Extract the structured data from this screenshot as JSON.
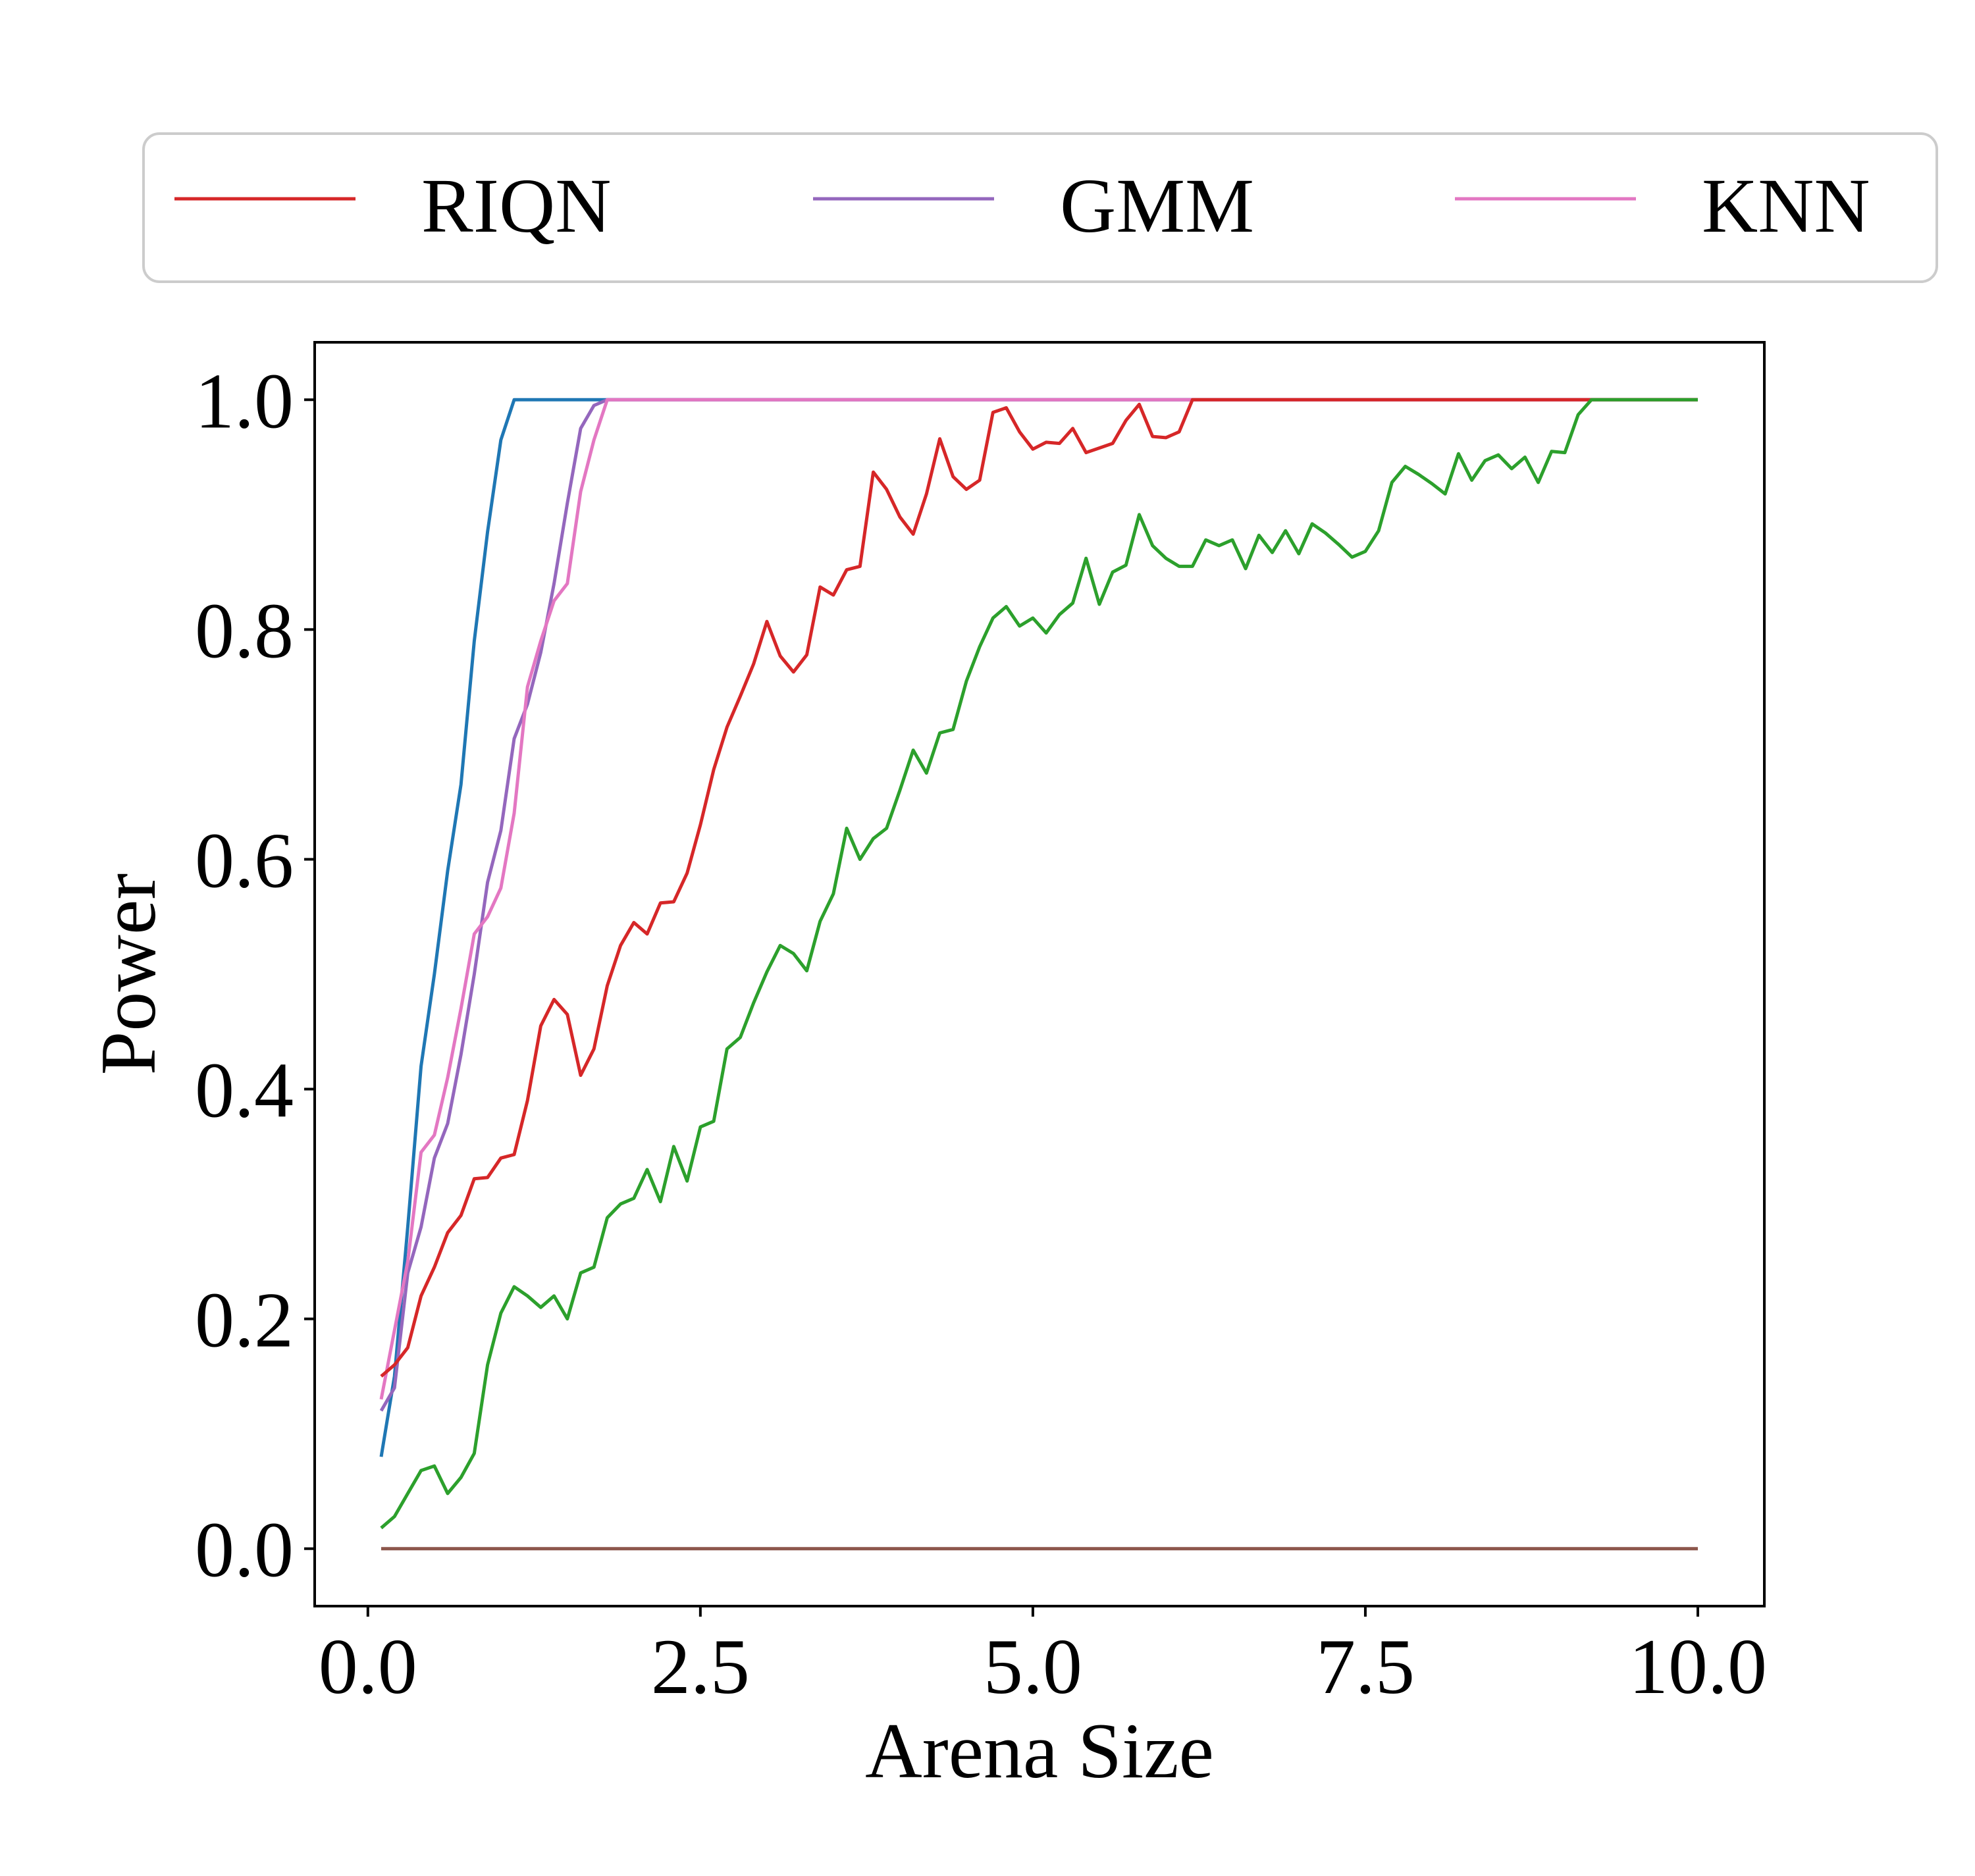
{
  "chart_data": {
    "type": "line",
    "xlabel": "Arena Size",
    "ylabel": "Power",
    "xlim": [
      -0.4,
      10.5
    ],
    "ylim": [
      -0.05,
      1.05
    ],
    "xticks": [
      "0.0",
      "2.5",
      "5.0",
      "7.5",
      "10.0"
    ],
    "xtick_values": [
      0,
      2.5,
      5,
      7.5,
      10
    ],
    "yticks": [
      "0.0",
      "0.2",
      "0.4",
      "0.6",
      "0.8",
      "1.0"
    ],
    "ytick_values": [
      0,
      0.2,
      0.4,
      0.6,
      0.8,
      1.0
    ],
    "grid": false,
    "legend": {
      "placement": "top, above plot, 3 columns",
      "entries": [
        {
          "label": "RIQN",
          "color": "#d62728"
        },
        {
          "label": "GMM",
          "color": "#9467bd"
        },
        {
          "label": "KNN",
          "color": "#e377c2"
        }
      ]
    },
    "series": [
      {
        "color": "#1f77b4",
        "x": [
          0.1,
          0.2,
          0.3,
          0.4,
          0.5,
          0.6,
          0.7,
          0.8,
          0.9,
          1.0,
          1.1,
          1.2,
          1.8,
          10.0
        ],
        "y": [
          0.08,
          0.15,
          0.28,
          0.42,
          0.5,
          0.59,
          0.665,
          0.79,
          0.885,
          0.965,
          1.0,
          1.0,
          1.0,
          1.0
        ]
      },
      {
        "name": "GMM",
        "color": "#9467bd",
        "x": [
          0.1,
          0.2,
          0.3,
          0.4,
          0.5,
          0.6,
          0.7,
          0.8,
          0.9,
          1.0,
          1.1,
          1.2,
          1.3,
          1.4,
          1.5,
          1.6,
          1.7,
          1.8,
          10.0
        ],
        "y": [
          0.12,
          0.14,
          0.24,
          0.28,
          0.34,
          0.37,
          0.43,
          0.5,
          0.58,
          0.625,
          0.705,
          0.735,
          0.78,
          0.84,
          0.91,
          0.975,
          0.995,
          1.0,
          1.0
        ]
      },
      {
        "name": "KNN",
        "color": "#e377c2",
        "x": [
          0.1,
          0.2,
          0.3,
          0.4,
          0.5,
          0.6,
          0.7,
          0.8,
          0.9,
          1.0,
          1.1,
          1.2,
          1.3,
          1.4,
          1.5,
          1.6,
          1.7,
          1.8,
          10.0
        ],
        "y": [
          0.13,
          0.19,
          0.25,
          0.345,
          0.36,
          0.41,
          0.47,
          0.535,
          0.55,
          0.575,
          0.64,
          0.75,
          0.79,
          0.825,
          0.84,
          0.92,
          0.965,
          1.0,
          1.0
        ]
      },
      {
        "name": "RIQN",
        "color": "#d62728",
        "x": [
          0.1,
          0.2,
          0.3,
          0.4,
          0.5,
          0.6,
          0.7,
          0.8,
          0.9,
          1.0,
          1.1,
          1.2,
          1.3,
          1.4,
          1.5,
          1.6,
          1.7,
          1.8,
          1.9,
          2.0,
          2.1,
          2.2,
          2.3,
          2.4,
          2.5,
          2.6,
          2.7,
          2.8,
          2.9,
          3.0,
          3.1,
          3.2,
          3.3,
          3.4,
          3.5,
          3.6,
          3.7,
          3.8,
          3.9,
          4.0,
          4.1,
          4.2,
          4.3,
          4.4,
          4.5,
          4.6,
          4.7,
          4.8,
          4.9,
          5.0,
          5.1,
          5.2,
          5.3,
          5.4,
          5.5,
          5.6,
          5.7,
          5.8,
          5.9,
          6.0,
          6.1,
          6.2,
          10.0
        ],
        "y": [
          0.15,
          0.16,
          0.175,
          0.22,
          0.245,
          0.275,
          0.29,
          0.322,
          0.323,
          0.34,
          0.343,
          0.39,
          0.455,
          0.478,
          0.465,
          0.412,
          0.435,
          0.49,
          0.525,
          0.545,
          0.535,
          0.562,
          0.563,
          0.588,
          0.63,
          0.678,
          0.715,
          0.742,
          0.77,
          0.807,
          0.777,
          0.763,
          0.778,
          0.837,
          0.83,
          0.852,
          0.855,
          0.937,
          0.922,
          0.898,
          0.883,
          0.918,
          0.966,
          0.933,
          0.922,
          0.93,
          0.989,
          0.993,
          0.972,
          0.957,
          0.963,
          0.962,
          0.975,
          0.954,
          0.958,
          0.962,
          0.982,
          0.996,
          0.968,
          0.967,
          0.972,
          1.0,
          1.0
        ]
      },
      {
        "color": "#2ca02c",
        "x": [
          0.1,
          0.2,
          0.3,
          0.4,
          0.5,
          0.6,
          0.7,
          0.8,
          0.9,
          1.0,
          1.1,
          1.2,
          1.3,
          1.4,
          1.5,
          1.6,
          1.7,
          1.8,
          1.9,
          2.0,
          2.1,
          2.2,
          2.3,
          2.4,
          2.5,
          2.6,
          2.7,
          2.8,
          2.9,
          3.0,
          3.1,
          3.2,
          3.3,
          3.4,
          3.5,
          3.6,
          3.7,
          3.8,
          3.9,
          4.0,
          4.1,
          4.2,
          4.3,
          4.4,
          4.5,
          4.6,
          4.7,
          4.8,
          4.9,
          5.0,
          5.1,
          5.2,
          5.3,
          5.4,
          5.5,
          5.6,
          5.7,
          5.8,
          5.9,
          6.0,
          6.1,
          6.2,
          6.3,
          6.4,
          6.5,
          6.6,
          6.7,
          6.8,
          6.9,
          7.0,
          7.1,
          7.2,
          7.3,
          7.4,
          7.5,
          7.6,
          7.7,
          7.8,
          7.9,
          8.0,
          8.1,
          8.2,
          8.3,
          8.4,
          8.5,
          8.6,
          8.7,
          8.8,
          8.9,
          9.0,
          9.1,
          9.2,
          10.0
        ],
        "y": [
          0.018,
          0.028,
          0.048,
          0.068,
          0.072,
          0.048,
          0.062,
          0.083,
          0.16,
          0.205,
          0.228,
          0.22,
          0.21,
          0.22,
          0.2,
          0.24,
          0.245,
          0.288,
          0.3,
          0.305,
          0.33,
          0.302,
          0.35,
          0.32,
          0.367,
          0.372,
          0.435,
          0.445,
          0.475,
          0.502,
          0.525,
          0.518,
          0.503,
          0.546,
          0.57,
          0.627,
          0.6,
          0.618,
          0.627,
          0.66,
          0.695,
          0.675,
          0.71,
          0.713,
          0.755,
          0.785,
          0.81,
          0.82,
          0.803,
          0.81,
          0.797,
          0.813,
          0.823,
          0.862,
          0.822,
          0.85,
          0.856,
          0.9,
          0.873,
          0.862,
          0.855,
          0.855,
          0.878,
          0.873,
          0.878,
          0.853,
          0.882,
          0.867,
          0.886,
          0.866,
          0.892,
          0.884,
          0.874,
          0.863,
          0.868,
          0.886,
          0.928,
          0.942,
          0.935,
          0.927,
          0.918,
          0.953,
          0.93,
          0.947,
          0.952,
          0.94,
          0.95,
          0.928,
          0.955,
          0.954,
          0.987,
          1.0,
          1.0
        ]
      },
      {
        "color": "#8c564b",
        "x": [
          0.1,
          10.0
        ],
        "y": [
          0.0,
          0.0
        ]
      }
    ]
  }
}
